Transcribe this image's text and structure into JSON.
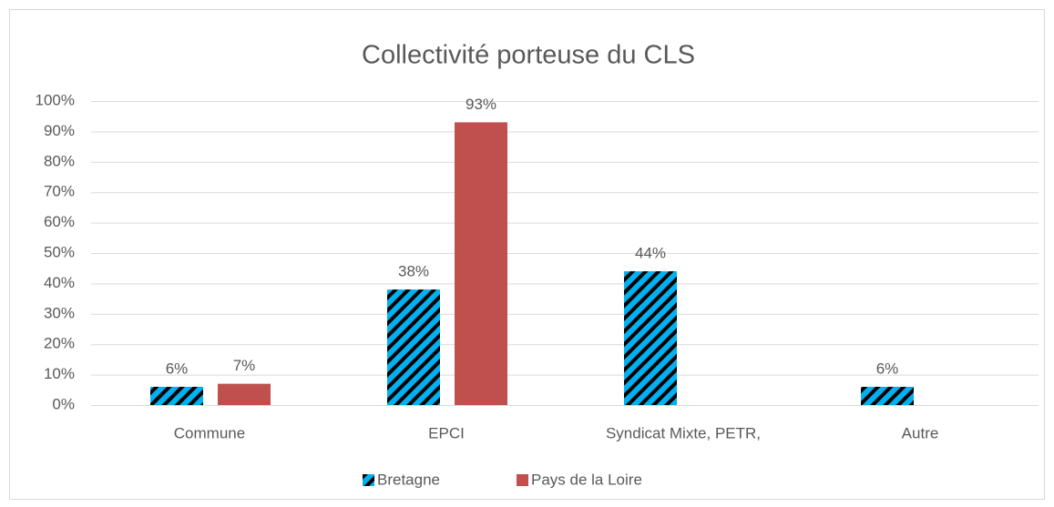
{
  "chart_data": {
    "type": "bar",
    "title": "Collectivité porteuse du CLS",
    "categories": [
      "Commune",
      "EPCI",
      "Syndicat Mixte, PETR,",
      "Autre"
    ],
    "series": [
      {
        "name": "Bretagne",
        "color": "#00b0f0",
        "pattern": "hatch",
        "values": [
          6,
          38,
          44,
          6
        ],
        "value_labels": [
          "6%",
          "38%",
          "44%",
          "6%"
        ]
      },
      {
        "name": "Pays de la Loire",
        "color": "#c0504d",
        "values": [
          7,
          93,
          null,
          null
        ],
        "value_labels": [
          "7%",
          "93%",
          null,
          null
        ]
      }
    ],
    "ylim": [
      0,
      100
    ],
    "yticks": [
      {
        "value": 0,
        "label": "0%"
      },
      {
        "value": 10,
        "label": "10%"
      },
      {
        "value": 20,
        "label": "20%"
      },
      {
        "value": 30,
        "label": "30%"
      },
      {
        "value": 40,
        "label": "40%"
      },
      {
        "value": 50,
        "label": "50%"
      },
      {
        "value": 60,
        "label": "60%"
      },
      {
        "value": 70,
        "label": "70%"
      },
      {
        "value": 80,
        "label": "80%"
      },
      {
        "value": 90,
        "label": "90%"
      },
      {
        "value": 100,
        "label": "100%"
      }
    ],
    "grid": true,
    "legend": "bottom"
  }
}
